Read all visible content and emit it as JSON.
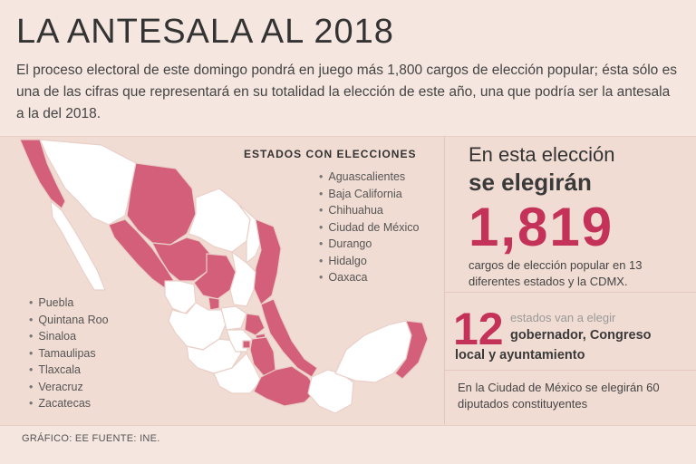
{
  "header": {
    "title": "LA ANTESALA AL 2018",
    "intro": "El proceso electoral de este domingo pondrá en juego más 1,800 cargos de elección popular; ésta sólo es una de las cifras que representará en su totalidad la elección de este año, una que podría ser la antesala a la del 2018."
  },
  "map": {
    "legend_title": "ESTADOS CON ELECCIONES",
    "highlight_color": "#d35f7a",
    "base_color": "#ffffff",
    "states_list_a": [
      "Aguascalientes",
      "Baja California",
      "Chihuahua",
      "Ciudad de México",
      "Durango",
      "Hidalgo",
      "Oaxaca"
    ],
    "states_list_b": [
      "Puebla",
      "Quintana Roo",
      "Sinaloa",
      "Tamaulipas",
      "Tlaxcala",
      "Veracruz",
      "Zacatecas"
    ]
  },
  "stats": {
    "line1": "En esta elección",
    "line2": "se elegirán",
    "total_positions": "1,819",
    "positions_desc": "cargos de elección popular en 13 diferentes estados y la CDMX.",
    "states_count": "12",
    "states_lead": "estados van a elegir",
    "states_desc_1": "gobernador, Congreso",
    "states_desc_2": "local y ayuntamiento",
    "cdmx_note": "En la Ciudad de México se elegirán 60 diputados constituyentes"
  },
  "footer": {
    "credit": "GRÁFICO: EE  FUENTE: INE."
  },
  "colors": {
    "accent": "#c4325a",
    "background": "#f5e6df",
    "panel": "#f1dcd3"
  }
}
